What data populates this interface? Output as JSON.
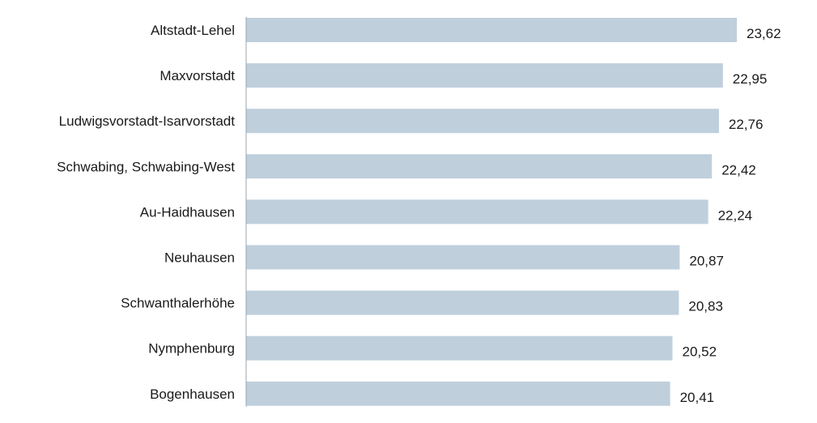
{
  "chart_data": {
    "type": "bar",
    "orientation": "horizontal",
    "categories": [
      "Altstadt-Lehel",
      "Maxvorstadt",
      "Ludwigsvorstadt-Isarvorstadt",
      "Schwabing, Schwabing-West",
      "Au-Haidhausen",
      "Neuhausen",
      "Schwanthalerhöhe",
      "Nymphenburg",
      "Bogenhausen"
    ],
    "values": [
      23.62,
      22.95,
      22.76,
      22.42,
      22.24,
      20.87,
      20.83,
      20.52,
      20.41
    ],
    "value_labels": [
      "23,62",
      "22,95",
      "22,76",
      "22,42",
      "22,24",
      "20,87",
      "20,83",
      "20,52",
      "20,41"
    ],
    "xlim": [
      0,
      23.62
    ],
    "grid": false,
    "legend": "none",
    "colors": {
      "bar": "#bfcfdc",
      "axis": "#9aa5ad",
      "text": "#1a1a1a"
    }
  }
}
